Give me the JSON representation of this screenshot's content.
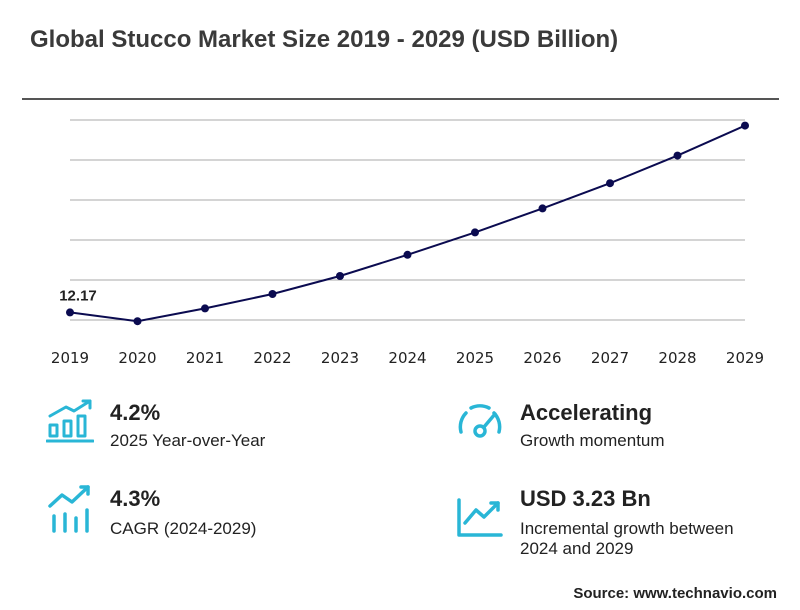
{
  "title": "Global Stucco Market Size 2019 - 2029 (USD Billion)",
  "chart_data": {
    "type": "line",
    "title": "Global Stucco Market Size 2019 - 2029 (USD Billion)",
    "x": [
      "2019",
      "2020",
      "2021",
      "2022",
      "2023",
      "2024",
      "2025",
      "2026",
      "2027",
      "2028",
      "2029"
    ],
    "series": [
      {
        "values": [
          12.17,
          11.95,
          12.27,
          12.63,
          13.08,
          13.61,
          14.17,
          14.77,
          15.4,
          16.09,
          16.84
        ],
        "color": "#0b0b50"
      }
    ],
    "data_labels": [
      {
        "x": "2019",
        "text": "12.17"
      }
    ],
    "ylim": [
      11.98,
      16.98
    ],
    "grid": true
  },
  "stats": [
    {
      "value": "4.2%",
      "desc": "2025 Year-over-Year",
      "icon": "bar-growth-icon"
    },
    {
      "value": "Accelerating",
      "desc": "Growth momentum",
      "icon": "gauge-icon"
    },
    {
      "value": "4.3%",
      "desc": "CAGR (2024-2029)",
      "icon": "trend-bars-icon"
    },
    {
      "value": "USD 3.23 Bn",
      "desc": "Incremental growth between 2024 and 2029",
      "icon": "rising-chart-icon"
    }
  ],
  "source": "Source: www.technavio.com",
  "colors": {
    "accent": "#29b6d6",
    "line": "#0b0b50",
    "grid": "#aaaaaa"
  }
}
